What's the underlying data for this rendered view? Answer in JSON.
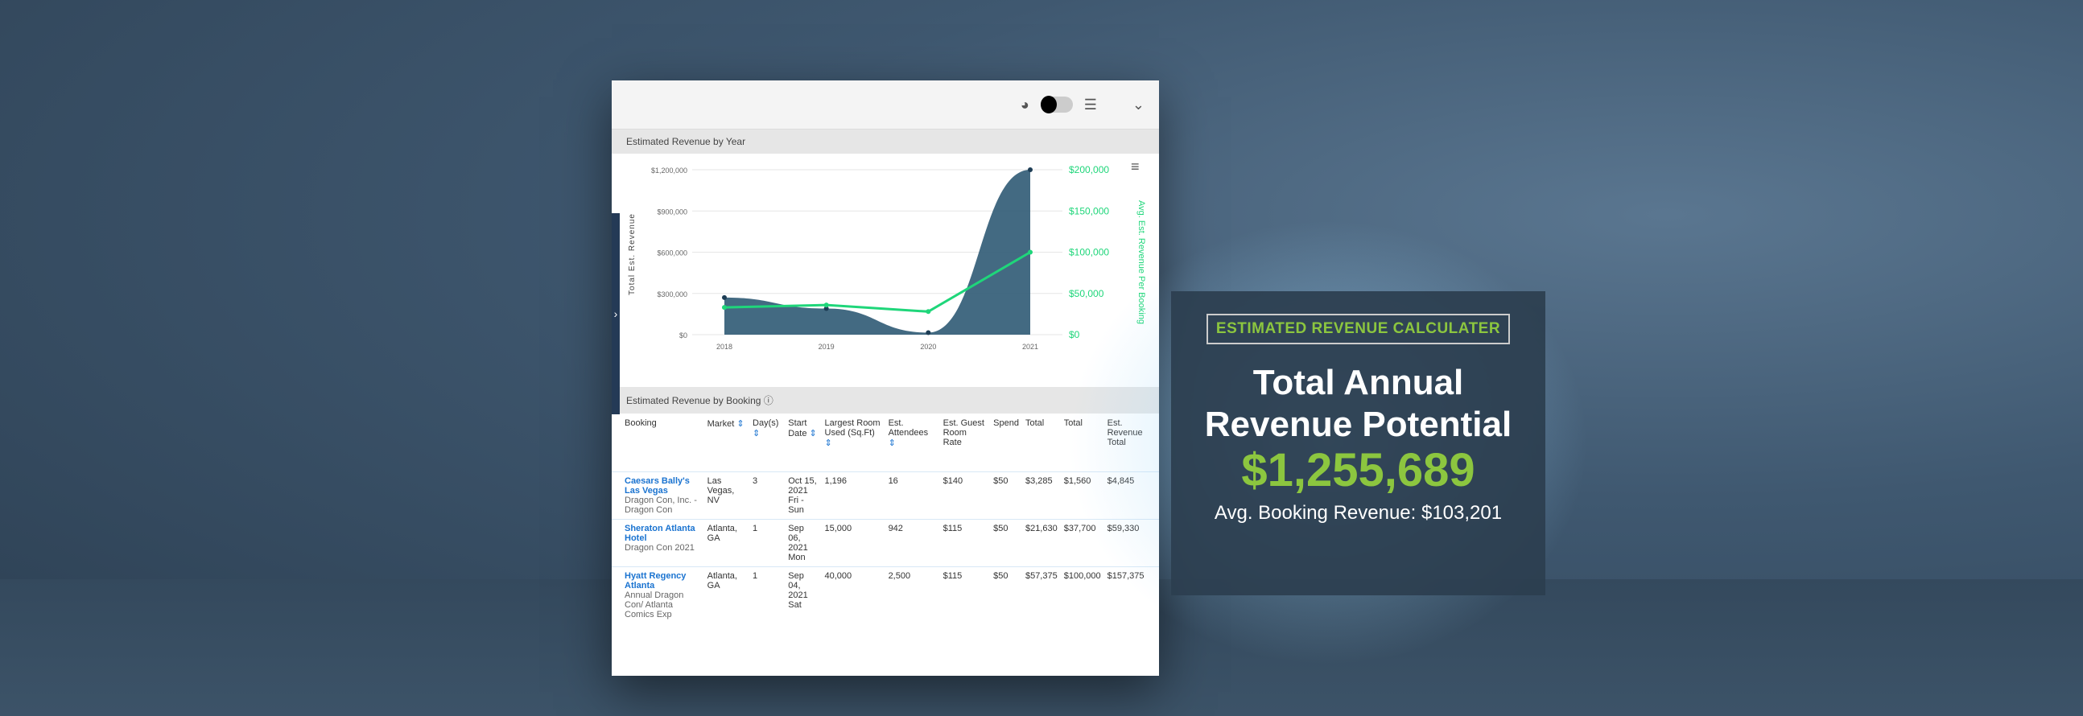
{
  "toolbar": {
    "icons": [
      "pie-chart-icon",
      "toggle",
      "list-icon",
      "chevron-down-icon",
      "menu-icon"
    ]
  },
  "chart_section": {
    "title": "Estimated Revenue by Year"
  },
  "chart_data": {
    "type": "area+line",
    "categories": [
      "2018",
      "2019",
      "2020",
      "2021"
    ],
    "series": [
      {
        "type": "area",
        "axis": "left",
        "values": [
          270000,
          190000,
          15000,
          1200000
        ],
        "color": "#2f5a74"
      },
      {
        "type": "line",
        "axis": "right",
        "values": [
          33000,
          36000,
          28000,
          100000
        ],
        "color": "#1fd67a"
      }
    ],
    "ylabel": "Total Est. Revenue",
    "y2label": "Avg. Est. Revenue Per Booking",
    "ylim": [
      0,
      1200000
    ],
    "y2lim": [
      0,
      200000
    ],
    "yticks": [
      "$0",
      "$300,000",
      "$600,000",
      "$900,000",
      "$1,200,000"
    ],
    "y2ticks": [
      "$0",
      "$50,000",
      "$100,000",
      "$150,000",
      "$200,000"
    ],
    "grid": true
  },
  "table_section": {
    "title": "Estimated Revenue by Booking",
    "headers": [
      "Booking",
      "Market",
      "Day(s)",
      "Start Date",
      "Largest Room Used (Sq.Ft)",
      "Est. Attendees",
      "Est. Guest Room Rate",
      "Spend",
      "Total",
      "Total",
      "Est. Revenue Total"
    ],
    "rows": [
      {
        "venue": "Caesars Bally's Las Vegas",
        "event": "Dragon Con, Inc. - Dragon Con",
        "market": "Las Vegas, NV",
        "days": "3",
        "date": "Oct 15, 2021",
        "dow": "Fri - Sun",
        "room": "1,196",
        "att": "16",
        "rate": "$140",
        "spend": "$50",
        "c1": "$3,285",
        "c2": "$1,560",
        "total": "$4,845"
      },
      {
        "venue": "Sheraton Atlanta Hotel",
        "event": "Dragon Con 2021",
        "market": "Atlanta, GA",
        "days": "1",
        "date": "Sep 06, 2021",
        "dow": "Mon",
        "room": "15,000",
        "att": "942",
        "rate": "$115",
        "spend": "$50",
        "c1": "$21,630",
        "c2": "$37,700",
        "total": "$59,330"
      },
      {
        "venue": "Hyatt Regency Atlanta",
        "event": "Annual Dragon Con/ Atlanta Comics Exp",
        "market": "Atlanta, GA",
        "days": "1",
        "date": "Sep 04, 2021",
        "dow": "Sat",
        "room": "40,000",
        "att": "2,500",
        "rate": "$115",
        "spend": "$50",
        "c1": "$57,375",
        "c2": "$100,000",
        "total": "$157,375"
      }
    ]
  },
  "overlay": {
    "badge": "ESTIMATED REVENUE CALCULATER",
    "headline1": "Total Annual",
    "headline2": "Revenue Potential",
    "amount": "$1,255,689",
    "avg": "Avg. Booking Revenue: $103,201"
  },
  "colors": {
    "accent": "#8cc63f",
    "area": "#2f5a74",
    "line": "#1fd67a",
    "overlay": "#2c3e50"
  }
}
